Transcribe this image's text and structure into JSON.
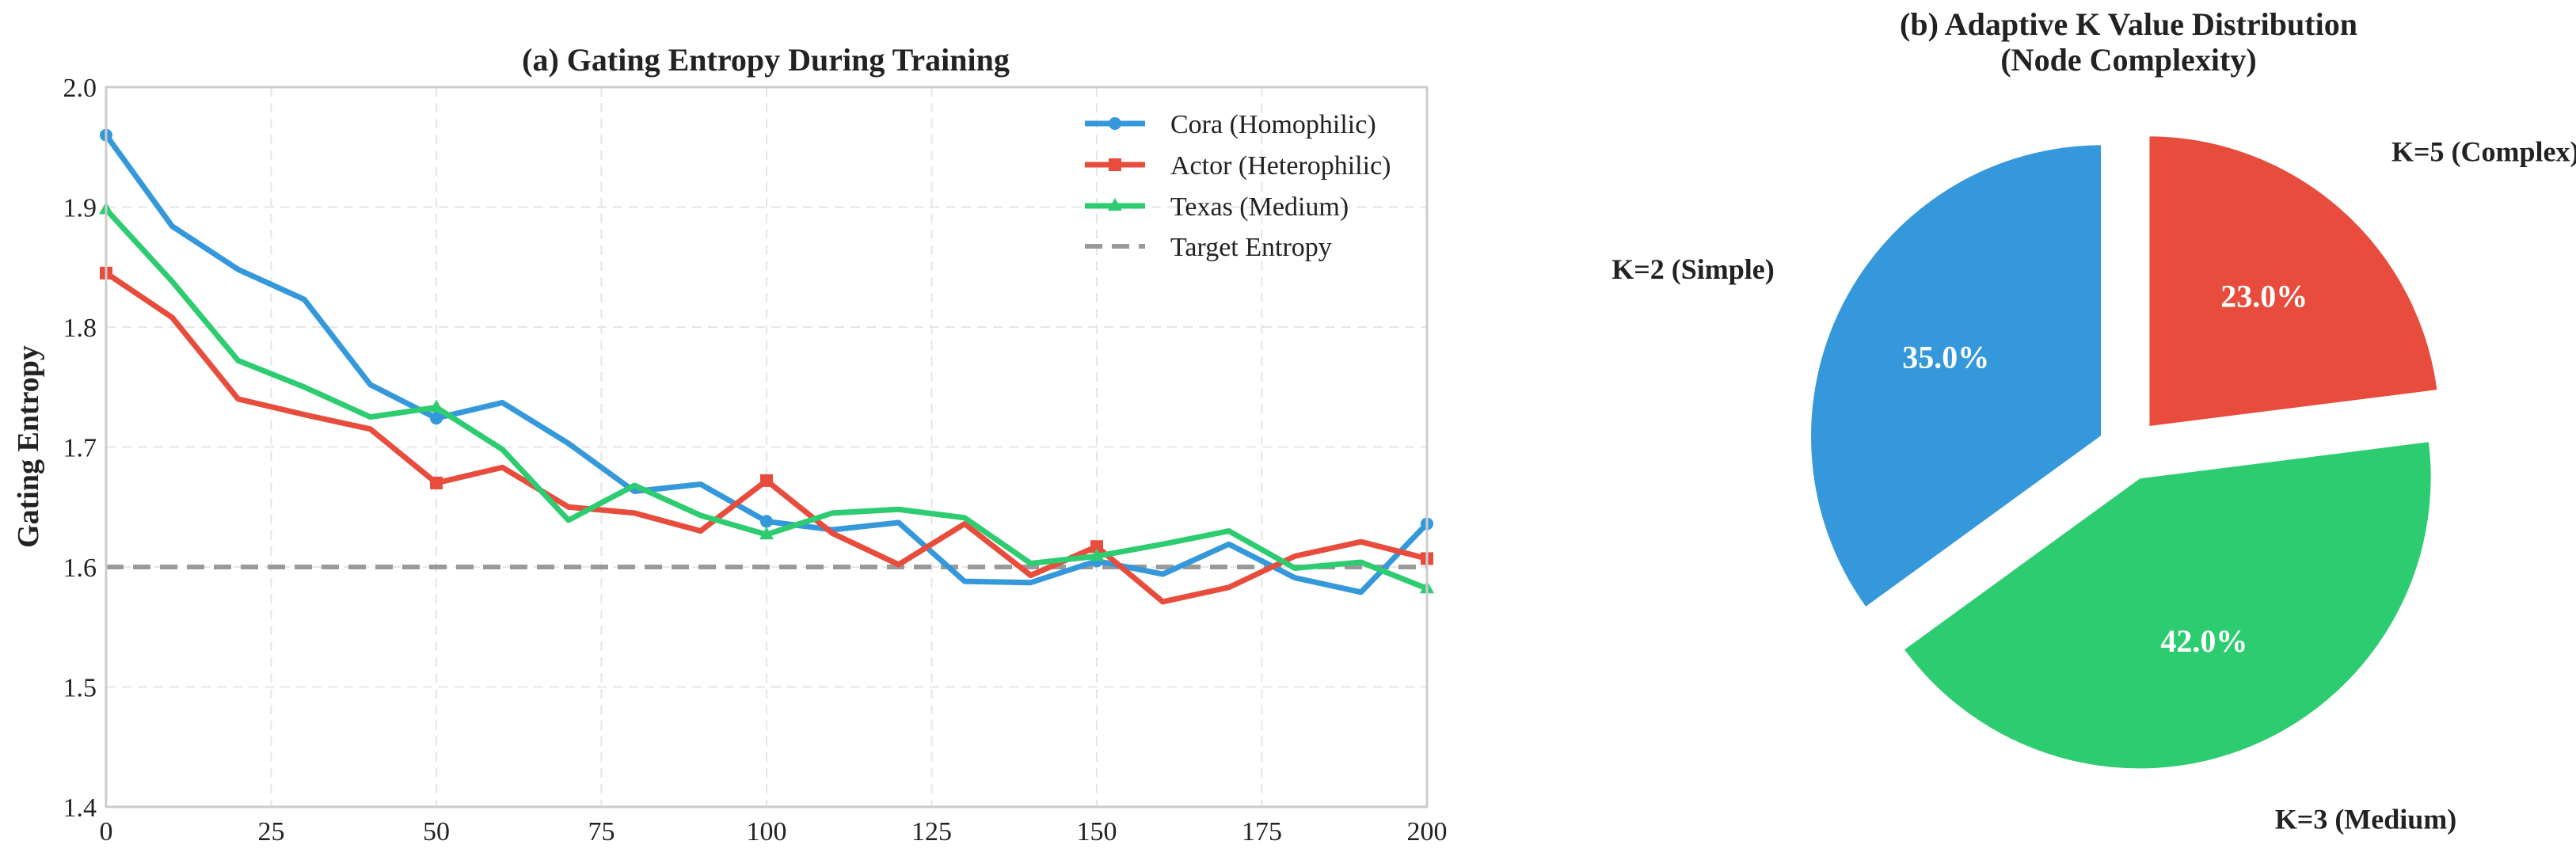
{
  "chart_data": [
    {
      "type": "line",
      "title": "(a) Gating Entropy During Training",
      "xlabel": "",
      "ylabel": "Gating Entropy",
      "xlim": [
        0,
        200
      ],
      "ylim": [
        1.4,
        2.0
      ],
      "x_ticks": [
        "0",
        "25",
        "50",
        "75",
        "100",
        "125",
        "150",
        "175",
        "200"
      ],
      "y_ticks": [
        "1.4",
        "1.5",
        "1.6",
        "1.7",
        "1.8",
        "1.9",
        "2.0"
      ],
      "grid": true,
      "legend_position": "top-right",
      "x": [
        0,
        10,
        20,
        30,
        40,
        50,
        60,
        70,
        80,
        90,
        100,
        110,
        120,
        130,
        140,
        150,
        160,
        170,
        180,
        190,
        200
      ],
      "series": [
        {
          "name": "Cora (Homophilic)",
          "color": "#3498db",
          "marker": "circle",
          "values": [
            1.96,
            1.884,
            1.848,
            1.823,
            1.752,
            1.724,
            1.737,
            1.703,
            1.663,
            1.669,
            1.638,
            1.631,
            1.637,
            1.588,
            1.587,
            1.605,
            1.594,
            1.619,
            1.591,
            1.579,
            1.636
          ]
        },
        {
          "name": "Actor (Heterophilic)",
          "color": "#e74c3c",
          "marker": "square",
          "values": [
            1.845,
            1.808,
            1.74,
            1.727,
            1.715,
            1.67,
            1.683,
            1.65,
            1.645,
            1.63,
            1.672,
            1.628,
            1.602,
            1.636,
            1.593,
            1.617,
            1.571,
            1.583,
            1.609,
            1.621,
            1.607
          ]
        },
        {
          "name": "Texas (Medium)",
          "color": "#2ecc71",
          "marker": "triangle",
          "values": [
            1.898,
            1.838,
            1.772,
            1.75,
            1.725,
            1.733,
            1.698,
            1.639,
            1.668,
            1.643,
            1.627,
            1.645,
            1.648,
            1.641,
            1.603,
            1.609,
            1.619,
            1.63,
            1.599,
            1.604,
            1.582
          ]
        }
      ],
      "reference_line": {
        "name": "Target Entropy",
        "y": 1.6,
        "color": "#999999",
        "style": "dashed"
      }
    },
    {
      "type": "pie",
      "title": "(b) Adaptive K Value Distribution",
      "subtitle": "(Node Complexity)",
      "slices": [
        {
          "label": "K=5 (Complex)",
          "value": 23.0,
          "pct_label": "23.0%",
          "color": "#e74c3c"
        },
        {
          "label": "K=3 (Medium)",
          "value": 42.0,
          "pct_label": "42.0%",
          "color": "#2ecc71"
        },
        {
          "label": "K=2 (Simple)",
          "value": 35.0,
          "pct_label": "35.0%",
          "color": "#3498db"
        }
      ],
      "start_angle": "top, clockwise",
      "exploded": true
    }
  ]
}
